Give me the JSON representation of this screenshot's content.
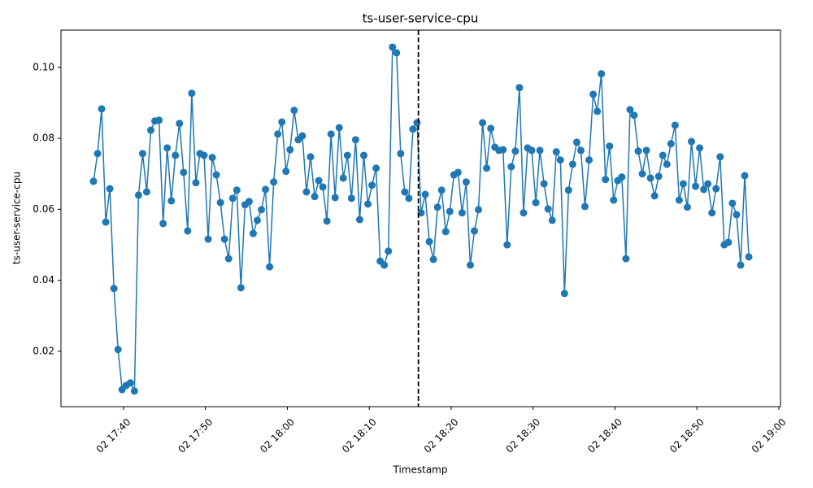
{
  "chart_data": {
    "type": "line",
    "title": "ts-user-service-cpu",
    "x_label": "Timestamp",
    "y_label": "ts-user-service-cpu",
    "color": "#1f77b4",
    "markers": true,
    "vline": "02 18:16",
    "vline_color": "#000000",
    "vline_style": "dashed",
    "x": [
      "02 17:36:20",
      "02 17:36:50",
      "02 17:37:20",
      "02 17:37:50",
      "02 17:38:20",
      "02 17:38:50",
      "02 17:39:20",
      "02 17:39:50",
      "02 17:40:20",
      "02 17:40:50",
      "02 17:41:20",
      "02 17:41:50",
      "02 17:42:20",
      "02 17:42:50",
      "02 17:43:20",
      "02 17:43:50",
      "02 17:44:20",
      "02 17:44:50",
      "02 17:45:20",
      "02 17:45:50",
      "02 17:46:20",
      "02 17:46:50",
      "02 17:47:20",
      "02 17:47:50",
      "02 17:48:20",
      "02 17:48:50",
      "02 17:49:20",
      "02 17:49:50",
      "02 17:50:20",
      "02 17:50:50",
      "02 17:51:20",
      "02 17:51:50",
      "02 17:52:20",
      "02 17:52:50",
      "02 17:53:20",
      "02 17:53:50",
      "02 17:54:20",
      "02 17:54:50",
      "02 17:55:20",
      "02 17:55:50",
      "02 17:56:20",
      "02 17:56:50",
      "02 17:57:20",
      "02 17:57:50",
      "02 17:58:20",
      "02 17:58:50",
      "02 17:59:20",
      "02 17:59:50",
      "02 18:00:20",
      "02 18:00:50",
      "02 18:01:20",
      "02 18:01:50",
      "02 18:02:20",
      "02 18:02:50",
      "02 18:03:20",
      "02 18:03:50",
      "02 18:04:20",
      "02 18:04:50",
      "02 18:05:20",
      "02 18:05:50",
      "02 18:06:20",
      "02 18:06:50",
      "02 18:07:20",
      "02 18:07:50",
      "02 18:08:20",
      "02 18:08:50",
      "02 18:09:20",
      "02 18:09:50",
      "02 18:10:20",
      "02 18:10:50",
      "02 18:11:20",
      "02 18:11:50",
      "02 18:12:20",
      "02 18:12:50",
      "02 18:13:20",
      "02 18:13:50",
      "02 18:14:20",
      "02 18:14:50",
      "02 18:15:20",
      "02 18:15:50",
      "02 18:16:20",
      "02 18:16:50",
      "02 18:17:20",
      "02 18:17:50",
      "02 18:18:20",
      "02 18:18:50",
      "02 18:19:20",
      "02 18:19:50",
      "02 18:20:20",
      "02 18:20:50",
      "02 18:21:20",
      "02 18:21:50",
      "02 18:22:20",
      "02 18:22:50",
      "02 18:23:20",
      "02 18:23:50",
      "02 18:24:20",
      "02 18:24:50",
      "02 18:25:20",
      "02 18:25:50",
      "02 18:26:20",
      "02 18:26:50",
      "02 18:27:20",
      "02 18:27:50",
      "02 18:28:20",
      "02 18:28:50",
      "02 18:29:20",
      "02 18:29:50",
      "02 18:30:20",
      "02 18:30:50",
      "02 18:31:20",
      "02 18:31:50",
      "02 18:32:20",
      "02 18:32:50",
      "02 18:33:20",
      "02 18:33:50",
      "02 18:34:20",
      "02 18:34:50",
      "02 18:35:20",
      "02 18:35:50",
      "02 18:36:20",
      "02 18:36:50",
      "02 18:37:20",
      "02 18:37:50",
      "02 18:38:20",
      "02 18:38:50",
      "02 18:39:20",
      "02 18:39:50",
      "02 18:40:20",
      "02 18:40:50",
      "02 18:41:20",
      "02 18:41:50",
      "02 18:42:20",
      "02 18:42:50",
      "02 18:43:20",
      "02 18:43:50",
      "02 18:44:20",
      "02 18:44:50",
      "02 18:45:20",
      "02 18:45:50",
      "02 18:46:20",
      "02 18:46:50",
      "02 18:47:20",
      "02 18:47:50",
      "02 18:48:20",
      "02 18:48:50",
      "02 18:49:20",
      "02 18:49:50",
      "02 18:50:20",
      "02 18:50:50",
      "02 18:51:20",
      "02 18:51:50",
      "02 18:52:20",
      "02 18:52:50",
      "02 18:53:20",
      "02 18:53:50",
      "02 18:54:20",
      "02 18:54:50",
      "02 18:55:20",
      "02 18:55:50",
      "02 18:56:20"
    ],
    "values": [
      0.0679,
      0.0757,
      0.0883,
      0.0564,
      0.0658,
      0.0377,
      0.0205,
      0.0092,
      0.0104,
      0.0111,
      0.0088,
      0.064,
      0.0757,
      0.0649,
      0.0823,
      0.0849,
      0.0851,
      0.056,
      0.0773,
      0.0624,
      0.0752,
      0.0842,
      0.0704,
      0.0539,
      0.0927,
      0.0675,
      0.0757,
      0.0752,
      0.0516,
      0.0746,
      0.0697,
      0.0619,
      0.0516,
      0.0461,
      0.0631,
      0.0654,
      0.0379,
      0.0613,
      0.0622,
      0.0532,
      0.0569,
      0.0599,
      0.0656,
      0.0438,
      0.0677,
      0.0812,
      0.0846,
      0.0707,
      0.0768,
      0.0879,
      0.0796,
      0.0807,
      0.0649,
      0.0748,
      0.0636,
      0.0681,
      0.0663,
      0.0567,
      0.0812,
      0.0633,
      0.083,
      0.0688,
      0.0752,
      0.0631,
      0.0796,
      0.0571,
      0.0752,
      0.0615,
      0.0668,
      0.0716,
      0.0454,
      0.0443,
      0.0482,
      0.1057,
      0.1041,
      0.0757,
      0.0649,
      0.0631,
      0.0826,
      0.0844,
      0.059,
      0.0642,
      0.0509,
      0.0459,
      0.0606,
      0.0654,
      0.0537,
      0.0594,
      0.0697,
      0.0704,
      0.059,
      0.0677,
      0.0443,
      0.0539,
      0.0599,
      0.0844,
      0.0716,
      0.0828,
      0.0775,
      0.0766,
      0.0768,
      0.05,
      0.072,
      0.0764,
      0.0943,
      0.059,
      0.0773,
      0.0766,
      0.0619,
      0.0766,
      0.0672,
      0.0601,
      0.0569,
      0.0762,
      0.0739,
      0.0363,
      0.0654,
      0.0727,
      0.0789,
      0.0766,
      0.0608,
      0.0739,
      0.0924,
      0.0876,
      0.0982,
      0.0684,
      0.0778,
      0.0626,
      0.0681,
      0.0691,
      0.0461,
      0.0881,
      0.0865,
      0.0764,
      0.07,
      0.0766,
      0.0688,
      0.0638,
      0.0693,
      0.0752,
      0.0727,
      0.0785,
      0.0837,
      0.0626,
      0.0672,
      0.0606,
      0.0791,
      0.0665,
      0.0773,
      0.0656,
      0.0672,
      0.059,
      0.0658,
      0.0748,
      0.05,
      0.0507,
      0.0617,
      0.0585,
      0.0443,
      0.0695,
      0.0466
    ],
    "xlim": [
      "02 17:32:22",
      "02 19:00:12"
    ],
    "xticks": [
      "02 17:40",
      "02 17:50",
      "02 18:00",
      "02 18:10",
      "02 18:20",
      "02 18:30",
      "02 18:40",
      "02 18:50",
      "02 19:00"
    ],
    "ylim": [
      0.0044,
      0.1105
    ],
    "yticks": [
      0.02,
      0.04,
      0.06,
      0.08,
      {
        "value": 0.1,
        "label": "0.10"
      }
    ],
    "grid": false
  }
}
